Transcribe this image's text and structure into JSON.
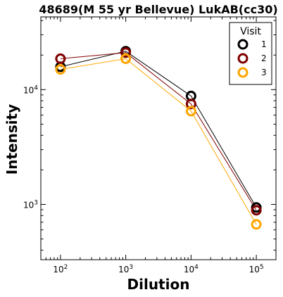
{
  "chart_data": {
    "type": "line",
    "title": "48689(M 55 yr Bellevue) LukAB(cc30)",
    "xlabel": "Dilution",
    "ylabel": "Intensity",
    "xscale": "log",
    "yscale": "log",
    "xlim": [
      50,
      200000
    ],
    "ylim": [
      330,
      43000
    ],
    "x": [
      100,
      1000,
      10000,
      100000
    ],
    "x_ticks": [
      {
        "value": 100,
        "base": "10",
        "exp": "2"
      },
      {
        "value": 1000,
        "base": "10",
        "exp": "3"
      },
      {
        "value": 10000,
        "base": "10",
        "exp": "4"
      },
      {
        "value": 100000,
        "base": "10",
        "exp": "5"
      }
    ],
    "y_ticks": [
      {
        "value": 1000,
        "base": "10",
        "exp": "3"
      },
      {
        "value": 10000,
        "base": "10",
        "exp": "4"
      }
    ],
    "grid": false,
    "legend": {
      "title": "Visit",
      "placement": "top-right"
    },
    "series": [
      {
        "name": "1",
        "color": "#000000",
        "values": [
          15800,
          21600,
          8800,
          940
        ]
      },
      {
        "name": "2",
        "color": "#800000",
        "values": [
          18600,
          21000,
          7500,
          890
        ]
      },
      {
        "name": "3",
        "color": "#FFA500",
        "values": [
          15000,
          18600,
          6500,
          670
        ]
      }
    ]
  }
}
